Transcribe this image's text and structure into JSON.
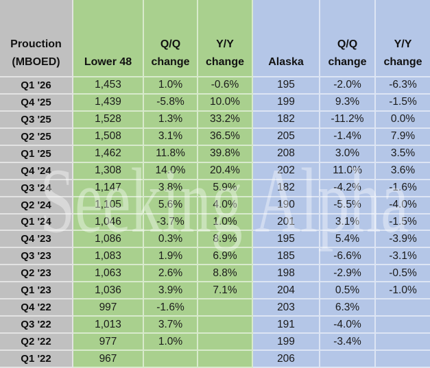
{
  "colors": {
    "green": "#a9d08e",
    "blue": "#b4c6e7",
    "gray": "#c0c0c0",
    "border": "rgba(255,255,255,0.55)"
  },
  "watermark": {
    "text": "Seeking Alpha"
  },
  "table": {
    "header": {
      "cols": [
        {
          "top": "Prouction",
          "bottom": "(MBOED)"
        },
        {
          "top": "",
          "bottom": "Lower 48"
        },
        {
          "top": "Q/Q",
          "bottom": "change"
        },
        {
          "top": "Y/Y",
          "bottom": "change"
        },
        {
          "top": "",
          "bottom": "Alaska"
        },
        {
          "top": "Q/Q",
          "bottom": "change"
        },
        {
          "top": "Y/Y",
          "bottom": "change"
        }
      ]
    }
  },
  "chart_data": {
    "type": "table",
    "title": "Prouction (MBOED)",
    "columns": [
      "Quarter",
      "Lower 48",
      "Lower 48 Q/Q change",
      "Lower 48 Y/Y change",
      "Alaska",
      "Alaska Q/Q change",
      "Alaska Y/Y change"
    ],
    "rows": [
      [
        "Q1 '26",
        "1,453",
        "1.0%",
        "-0.6%",
        "195",
        "-2.0%",
        "-6.3%"
      ],
      [
        "Q4 '25",
        "1,439",
        "-5.8%",
        "10.0%",
        "199",
        "9.3%",
        "-1.5%"
      ],
      [
        "Q3 '25",
        "1,528",
        "1.3%",
        "33.2%",
        "182",
        "-11.2%",
        "0.0%"
      ],
      [
        "Q2 '25",
        "1,508",
        "3.1%",
        "36.5%",
        "205",
        "-1.4%",
        "7.9%"
      ],
      [
        "Q1 '25",
        "1,462",
        "11.8%",
        "39.8%",
        "208",
        "3.0%",
        "3.5%"
      ],
      [
        "Q4 '24",
        "1,308",
        "14.0%",
        "20.4%",
        "202",
        "11.0%",
        "3.6%"
      ],
      [
        "Q3 '24",
        "1,147",
        "3.8%",
        "5.9%",
        "182",
        "-4.2%",
        "-1.6%"
      ],
      [
        "Q2 '24",
        "1,105",
        "5.6%",
        "4.0%",
        "190",
        "-5.5%",
        "-4.0%"
      ],
      [
        "Q1 '24",
        "1,046",
        "-3.7%",
        "1.0%",
        "201",
        "3.1%",
        "-1.5%"
      ],
      [
        "Q4 '23",
        "1,086",
        "0.3%",
        "8.9%",
        "195",
        "5.4%",
        "-3.9%"
      ],
      [
        "Q3 '23",
        "1,083",
        "1.9%",
        "6.9%",
        "185",
        "-6.6%",
        "-3.1%"
      ],
      [
        "Q2 '23",
        "1,063",
        "2.6%",
        "8.8%",
        "198",
        "-2.9%",
        "-0.5%"
      ],
      [
        "Q1 '23",
        "1,036",
        "3.9%",
        "7.1%",
        "204",
        "0.5%",
        "-1.0%"
      ],
      [
        "Q4 '22",
        "997",
        "-1.6%",
        "",
        "203",
        "6.3%",
        ""
      ],
      [
        "Q3 '22",
        "1,013",
        "3.7%",
        "",
        "191",
        "-4.0%",
        ""
      ],
      [
        "Q2 '22",
        "977",
        "1.0%",
        "",
        "199",
        "-3.4%",
        ""
      ],
      [
        "Q1 '22",
        "967",
        "",
        "",
        "206",
        "",
        ""
      ]
    ]
  }
}
